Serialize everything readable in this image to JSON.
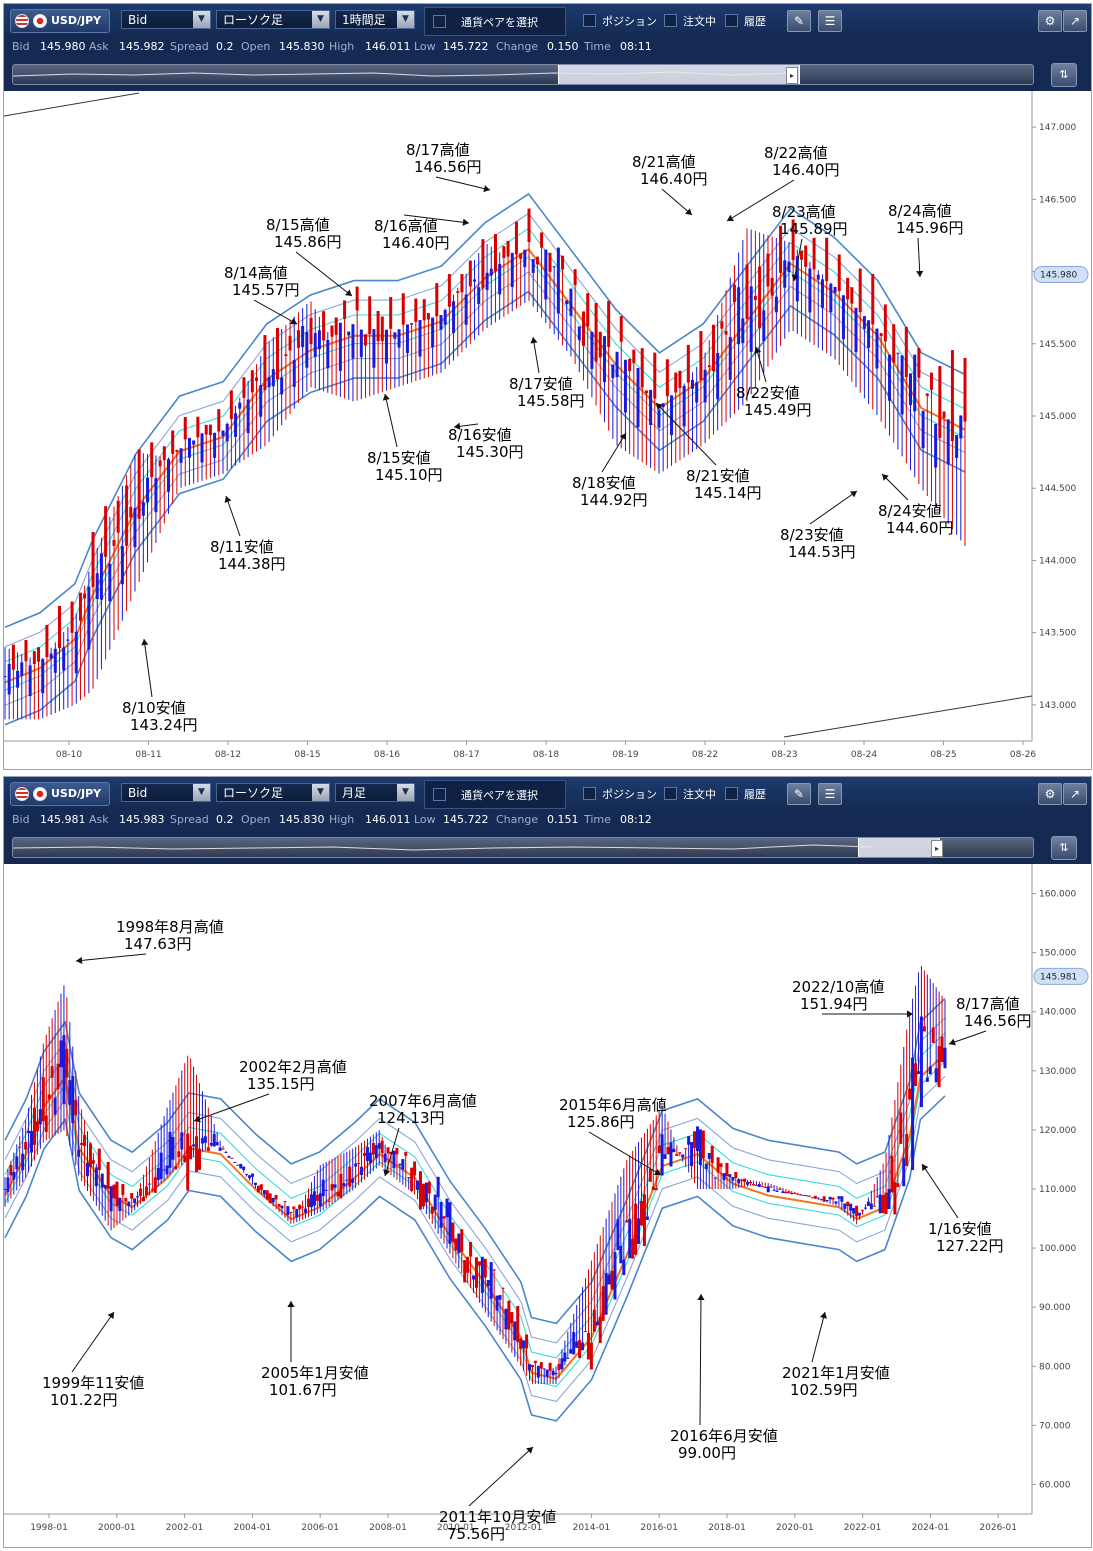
{
  "colors": {
    "candle_up": "#d90000",
    "candle_down": "#1a1adc",
    "ma": "#ee7722",
    "band1": "#33dddd",
    "band2": "#8aa6d8",
    "band3": "#4a86cc",
    "price_tag_bg": "#cfe0f7"
  },
  "top": {
    "symbol": "USD/JPY",
    "side": "Bid",
    "chart_type": "ローソク足",
    "period": "1時間足",
    "pair_select": "通貨ペアを選択",
    "chk_position": "ポジション",
    "chk_order": "注文中",
    "chk_history": "履歴",
    "quote": {
      "bid_l": "Bid",
      "bid": "145.980",
      "ask_l": "Ask",
      "ask": "145.982",
      "spread_l": "Spread",
      "spread": "0.2",
      "open_l": "Open",
      "open": "145.830",
      "high_l": "High",
      "high": "146.011",
      "low_l": "Low",
      "low": "145.722",
      "change_l": "Change",
      "change": "0.150",
      "time_l": "Time",
      "time": "08:11"
    },
    "price_tag": "145.980",
    "chart_data": {
      "type": "line",
      "ylim": [
        142.75,
        147.25
      ],
      "yticks": [
        "147.000",
        "146.500",
        "146.000",
        "145.500",
        "145.000",
        "144.500",
        "144.000",
        "143.500",
        "143.000"
      ],
      "ytick_values": [
        147.0,
        146.5,
        146.0,
        145.5,
        145.0,
        144.5,
        144.0,
        143.5,
        143.0
      ],
      "xticks": [
        "08-10",
        "08-11",
        "08-12",
        "08-15",
        "08-16",
        "08-17",
        "08-18",
        "08-19",
        "08-22",
        "08-23",
        "08-24",
        "08-25",
        "08-26"
      ],
      "x": [
        0,
        0.4,
        0.8,
        1.0,
        1.5,
        2.0,
        2.5,
        3.0,
        3.5,
        4.0,
        4.5,
        5.0,
        5.5,
        6.0,
        6.5,
        7.0,
        7.5,
        8.0,
        8.5,
        9.0,
        9.5,
        10.0,
        10.5,
        11.0
      ],
      "series": [
        {
          "values": [
            143.4,
            143.3,
            143.6,
            144.0,
            144.75,
            144.7,
            144.9,
            145.5,
            145.8,
            145.25,
            145.55,
            145.7,
            146.2,
            146.0,
            145.3,
            145.1,
            145.0,
            145.4,
            146.3,
            146.2,
            145.9,
            145.6,
            144.6,
            144.7
          ]
        },
        {
          "values": [
            143.2,
            143.3,
            143.5,
            143.8,
            144.4,
            144.8,
            144.9,
            145.3,
            145.5,
            145.6,
            145.6,
            145.7,
            146.0,
            146.2,
            145.8,
            145.4,
            145.1,
            145.3,
            145.7,
            146.1,
            145.9,
            145.6,
            145.1,
            144.95
          ]
        },
        {
          "values": [
            142.9,
            142.9,
            143.0,
            143.1,
            143.8,
            144.5,
            144.6,
            144.8,
            145.2,
            145.1,
            145.2,
            145.3,
            145.6,
            145.8,
            145.4,
            144.8,
            144.6,
            144.8,
            145.1,
            145.6,
            145.4,
            145.0,
            144.5,
            144.1
          ]
        }
      ],
      "annotations": [
        {
          "date": "8/10安値",
          "price": "143.24円"
        },
        {
          "date": "8/11安値",
          "price": "144.38円"
        },
        {
          "date": "8/14高値",
          "price": "145.57円"
        },
        {
          "date": "8/15高値",
          "price": "145.86円"
        },
        {
          "date": "8/15安値",
          "price": "145.10円"
        },
        {
          "date": "8/16高値",
          "price": "146.40円"
        },
        {
          "date": "8/16安値",
          "price": "145.30円"
        },
        {
          "date": "8/17高値",
          "price": "146.56円"
        },
        {
          "date": "8/17安値",
          "price": "145.58円"
        },
        {
          "date": "8/18安値",
          "price": "144.92円"
        },
        {
          "date": "8/21高値",
          "price": "146.40円"
        },
        {
          "date": "8/21安値",
          "price": "145.14円"
        },
        {
          "date": "8/22高値",
          "price": "146.40円"
        },
        {
          "date": "8/22安値",
          "price": "145.49円"
        },
        {
          "date": "8/23高値",
          "price": "145.89円"
        },
        {
          "date": "8/23安値",
          "price": "144.53円"
        },
        {
          "date": "8/24高値",
          "price": "145.96円"
        },
        {
          "date": "8/24安値",
          "price": "144.60円"
        }
      ]
    }
  },
  "bottom": {
    "symbol": "USD/JPY",
    "side": "Bid",
    "chart_type": "ローソク足",
    "period": "月足",
    "pair_select": "通貨ペアを選択",
    "chk_position": "ポジション",
    "chk_order": "注文中",
    "chk_history": "履歴",
    "quote": {
      "bid_l": "Bid",
      "bid": "145.981",
      "ask_l": "Ask",
      "ask": "145.983",
      "spread_l": "Spread",
      "spread": "0.2",
      "open_l": "Open",
      "open": "145.830",
      "high_l": "High",
      "high": "146.011",
      "low_l": "Low",
      "low": "145.722",
      "change_l": "Change",
      "change": "0.151",
      "time_l": "Time",
      "time": "08:12"
    },
    "price_tag": "145.981",
    "chart_data": {
      "type": "line",
      "ylim": [
        55,
        165
      ],
      "yticks": [
        "160.000",
        "150.000",
        "140.000",
        "130.000",
        "120.000",
        "110.000",
        "100.000",
        "90.000",
        "80.000",
        "70.000",
        "60.000"
      ],
      "ytick_values": [
        160,
        150,
        140,
        130,
        120,
        110,
        100,
        90,
        80,
        70,
        60
      ],
      "xticks": [
        "1998-01",
        "2000-01",
        "2002-01",
        "2004-01",
        "2006-01",
        "2008-01",
        "2010-01",
        "2012-01",
        "2014-01",
        "2016-01",
        "2018-01",
        "2020-01",
        "2022-01",
        "2024-01",
        "2026-01"
      ],
      "x": [
        1996.9,
        1997.5,
        1998.0,
        1998.6,
        1999.0,
        1999.9,
        2000.5,
        2001.5,
        2002.1,
        2003.0,
        2004.0,
        2005.0,
        2005.8,
        2006.8,
        2007.5,
        2008.5,
        2009.5,
        2010.5,
        2011.5,
        2011.8,
        2012.5,
        2013.5,
        2014.5,
        2015.5,
        2016.5,
        2017.5,
        2018.5,
        2019.5,
        2020.5,
        2021.0,
        2021.8,
        2022.5,
        2022.8,
        2023.5
      ],
      "series": [
        {
          "values": [
            112,
            122,
            135,
            145,
            125,
            105,
            107,
            124,
            133,
            118,
            108,
            104,
            114,
            117,
            120,
            104,
            92,
            87,
            80,
            78,
            80,
            98,
            115,
            124,
            108,
            112,
            111,
            109,
            106,
            104,
            115,
            140,
            148,
            142
          ]
        },
        {
          "values": [
            110,
            117,
            125,
            130,
            118,
            110,
            108,
            113,
            118,
            117,
            111,
            106,
            108,
            113,
            117,
            113,
            103,
            95,
            86,
            80,
            79,
            86,
            100,
            115,
            117,
            112,
            110,
            109,
            108,
            106,
            108,
            120,
            130,
            134
          ]
        },
        {
          "values": [
            107,
            112,
            118,
            120,
            112,
            103,
            106,
            112,
            115,
            118,
            110,
            104,
            106,
            110,
            114,
            109,
            99,
            89,
            80,
            77,
            77,
            90,
            108,
            121,
            110,
            110,
            111,
            109,
            107,
            104,
            112,
            137,
            143,
            140
          ]
        }
      ],
      "annotations": [
        {
          "date": "1998年8月高値",
          "price": "147.63円"
        },
        {
          "date": "1999年11安値",
          "price": "101.22円"
        },
        {
          "date": "2002年2月高値",
          "price": "135.15円"
        },
        {
          "date": "2005年1月安値",
          "price": "101.67円"
        },
        {
          "date": "2007年6月高値",
          "price": "124.13円"
        },
        {
          "date": "2011年10月安値",
          "price": "75.56円"
        },
        {
          "date": "2015年6月高値",
          "price": "125.86円"
        },
        {
          "date": "2016年6月安値",
          "price": "99.00円"
        },
        {
          "date": "2021年1月安値",
          "price": "102.59円"
        },
        {
          "date": "2022/10高値",
          "price": "151.94円"
        },
        {
          "date": "8/17高値",
          "price": "146.56円"
        },
        {
          "date": "1/16安値",
          "price": "127.22円"
        }
      ]
    }
  }
}
